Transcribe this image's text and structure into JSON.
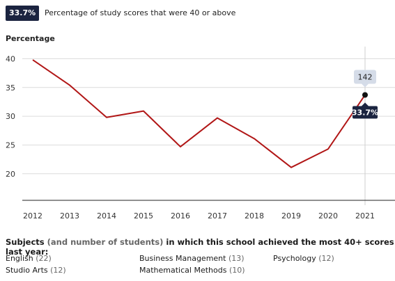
{
  "header": {
    "badge": "33.7%",
    "caption": "Percentage of study scores that were 40 or above"
  },
  "chart_data": {
    "type": "line",
    "ylabel": "Percentage",
    "x": [
      "2012",
      "2013",
      "2014",
      "2015",
      "2016",
      "2017",
      "2018",
      "2019",
      "2020",
      "2021"
    ],
    "values": [
      39.8,
      35.4,
      29.8,
      30.9,
      24.7,
      29.7,
      26.1,
      21.1,
      24.3,
      33.7
    ],
    "y_ticks": [
      20,
      25,
      30,
      35,
      40
    ],
    "ylim": [
      15.5,
      41.5
    ],
    "grid": true,
    "color": "#b11616",
    "highlight": {
      "index": 9,
      "label": "33.7%",
      "count": "142"
    }
  },
  "subjects": {
    "title_a": "Subjects",
    "title_b": "(and number of students)",
    "title_c": "in which this school achieved the most 40+ scores last year:",
    "items": [
      {
        "name": "English",
        "count": "(22)"
      },
      {
        "name": "Business Management",
        "count": "(13)"
      },
      {
        "name": "Psychology",
        "count": "(12)"
      },
      {
        "name": "Studio Arts",
        "count": "(12)"
      },
      {
        "name": "Mathematical Methods",
        "count": "(10)"
      }
    ]
  }
}
